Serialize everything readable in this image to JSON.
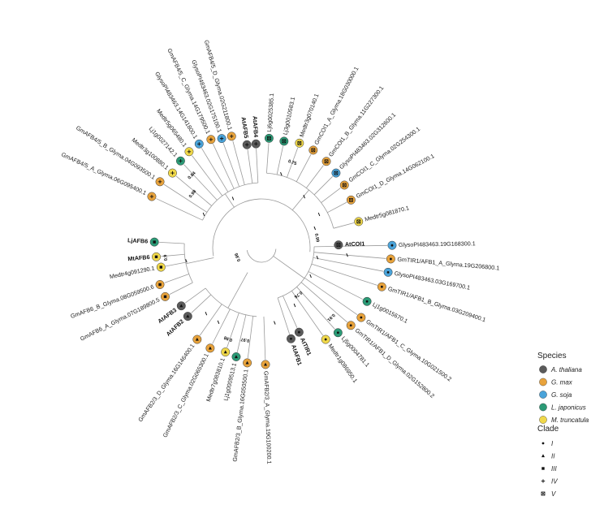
{
  "colors": {
    "A. thaliana": "#5a5a5a",
    "G. max": "#e8a33c",
    "G. soja": "#4aa3d9",
    "L. japonicus": "#2b9a76",
    "M. truncatula": "#f0d84a"
  },
  "tips": [
    {
      "label": "AtCOI1",
      "species": "A. thaliana",
      "clade": "V",
      "bold": true,
      "ang": 88,
      "r": 95
    },
    {
      "label": "Medtr5g081870.1",
      "species": "M. truncatula",
      "clade": "V",
      "ang": 75,
      "r": 124
    },
    {
      "label": "GmCOI1_D_Glyma.14G062100.1",
      "species": "G. max",
      "clade": "V",
      "ang": 62,
      "r": 125
    },
    {
      "label": "GmCOI1_C_Glyma.02G254300.1",
      "species": "G. max",
      "clade": "V",
      "ang": 53,
      "r": 128
    },
    {
      "label": "GlysoPI483463.02G312600.1",
      "species": "G. soja",
      "clade": "V",
      "ang": 45,
      "r": 130
    },
    {
      "label": "GmCOI1_B_Glyma.11G227300.1",
      "species": "G. max",
      "clade": "V",
      "ang": 37,
      "r": 133
    },
    {
      "label": "GmCOI1_A_Glyma.18G030000.1",
      "species": "G. max",
      "clade": "V",
      "ang": 28,
      "r": 136
    },
    {
      "label": "Medtr3g070140.1",
      "species": "M. truncatula",
      "clade": "V",
      "ang": 20,
      "r": 137
    },
    {
      "label": "Lj3g0010583.1",
      "species": "L. japonicus",
      "clade": "V",
      "ang": 12,
      "r": 134
    },
    {
      "label": "Lj6g0025385.1",
      "species": "L. japonicus",
      "clade": "V",
      "ang": 4,
      "r": 135
    },
    {
      "label": "AtAFB4",
      "species": "A. thaliana",
      "clade": "IV",
      "bold": true,
      "ang": -3,
      "r": 128
    },
    {
      "label": "AtAFB5",
      "species": "A. thaliana",
      "clade": "IV",
      "bold": true,
      "ang": -8,
      "r": 128
    },
    {
      "label": "GmAFB4/5_D_Glyma.02G211800.1",
      "species": "G. max",
      "clade": "IV",
      "ang": -15,
      "r": 142
    },
    {
      "label": "GlysoPI483463.02G175100.1",
      "species": "G. soja",
      "clade": "IV",
      "ang": -20,
      "r": 143
    },
    {
      "label": "GmAFB4/5_C_Glyma.14G179500.1",
      "species": "G. max",
      "clade": "IV",
      "ang": -25,
      "r": 147
    },
    {
      "label": "GlysoPI483463.14G141800.1",
      "species": "G. soja",
      "clade": "IV",
      "ang": -31,
      "r": 149
    },
    {
      "label": "Medtr5g065480.1",
      "species": "M. truncatula",
      "clade": "IV",
      "ang": -37,
      "r": 148
    },
    {
      "label": "Lj1g0027142.1",
      "species": "L. japonicus",
      "clade": "IV",
      "ang": -43,
      "r": 146
    },
    {
      "label": "Medtr3g100880.1",
      "species": "M. truncatula",
      "clade": "IV",
      "ang": -50,
      "r": 143
    },
    {
      "label": "GmAFB4/5_B_Glyma.04G093500.1",
      "species": "G. max",
      "clade": "IV",
      "ang": -57,
      "r": 149
    },
    {
      "label": "GmAFB4/5_A_Glyma.06G095400.1",
      "species": "G. max",
      "clade": "IV",
      "ang": -65,
      "r": 149
    },
    {
      "label": "LjAFB6",
      "species": "L. japonicus",
      "clade": "III",
      "bold": true,
      "ang": -87,
      "r": 132
    },
    {
      "label": "MtAFB6",
      "species": "M. truncatula",
      "clade": "III",
      "bold": true,
      "ang": -95,
      "r": 130
    },
    {
      "label": "Medtr4g091290.1",
      "species": "M. truncatula",
      "clade": "III",
      "ang": -101,
      "r": 126
    },
    {
      "label": "GmAFB6_B_Glyma.08G059500.6",
      "species": "G. max",
      "clade": "III",
      "ang": -110,
      "r": 133
    },
    {
      "label": "GmAFB6_A_Glyma.07G189800.5",
      "species": "G. max",
      "clade": "III",
      "ang": -117,
      "r": 133
    },
    {
      "label": "AtAFB3",
      "species": "A. thaliana",
      "clade": "II",
      "bold": true,
      "ang": -126,
      "r": 122
    },
    {
      "label": "AtAFB2",
      "species": "A. thaliana",
      "clade": "II",
      "bold": true,
      "ang": -133,
      "r": 124
    },
    {
      "label": "GmAFB2/3_D_Glyma.16G146400.1",
      "species": "G. max",
      "clade": "II",
      "ang": -145,
      "r": 138
    },
    {
      "label": "GmAFB2/3_C_Glyma.02G065300.1",
      "species": "G. max",
      "clade": "II",
      "ang": -153,
      "r": 139
    },
    {
      "label": "Medtr7g083810.1",
      "species": "M. truncatula",
      "clade": "II",
      "ang": -161,
      "r": 136
    },
    {
      "label": "Lj1g0009513.1",
      "species": "L. japonicus",
      "clade": "II",
      "ang": -167,
      "r": 138
    },
    {
      "label": "GmAFB2/3_B_Glyma.16G050500.1",
      "species": "G. max",
      "clade": "II",
      "ang": -173,
      "r": 143
    },
    {
      "label": "GmAFB2/3_A_Glyma.19G100200.1",
      "species": "G. max",
      "clade": "II",
      "ang": 178,
      "r": 144
    },
    {
      "label": "AtAFB1",
      "species": "A. thaliana",
      "clade": "I",
      "bold": true,
      "ang": 162,
      "r": 118
    },
    {
      "label": "AtTIR1",
      "species": "A. thaliana",
      "clade": "I",
      "bold": true,
      "ang": 156,
      "r": 114
    },
    {
      "label": "Medtr1g086950.1",
      "species": "M. truncatula",
      "clade": "I",
      "ang": 145,
      "r": 138
    },
    {
      "label": "Lj5g0004781.1",
      "species": "L. japonicus",
      "clade": "I",
      "ang": 138,
      "r": 141
    },
    {
      "label": "GmTIR1/AFB1_D_Glyma.02G152800.2",
      "species": "G. max",
      "clade": "I",
      "ang": 131,
      "r": 146
    },
    {
      "label": "GmTIR1/AFB1_C_Glyma.10G021500.2",
      "species": "G. max",
      "clade": "I",
      "ang": 125,
      "r": 150
    },
    {
      "label": "Lj1g0015670.1",
      "species": "L. japonicus",
      "clade": "I",
      "ang": 117,
      "r": 146
    },
    {
      "label": "GmTIR1/AFB1_B_Glyma.03G209400.1",
      "species": "G. max",
      "clade": "I",
      "ang": 108,
      "r": 156
    },
    {
      "label": "GlysoPI483463.03G169700.1",
      "species": "G. soja",
      "clade": "I",
      "ang": 101,
      "r": 159
    },
    {
      "label": "GmTIR1/AFB1_A_Glyma.19G206800.1",
      "species": "G. max",
      "clade": "I",
      "ang": 95,
      "r": 160
    },
    {
      "label": "GlysoPI483463.19G168300.1",
      "species": "G. soja",
      "clade": "I",
      "ang": 89,
      "r": 161
    }
  ],
  "bootstraps": [
    {
      "text": "0.99",
      "ang": 80,
      "r": 68
    },
    {
      "text": "0.75",
      "ang": 20,
      "r": 110
    },
    {
      "text": "0.84",
      "ang": -44,
      "r": 122
    },
    {
      "text": "0.98",
      "ang": -52,
      "r": 106
    },
    {
      "text": "0.9",
      "ang": -96,
      "r": 117
    },
    {
      "text": "0.96",
      "ang": -112,
      "r": 30
    },
    {
      "text": "0.98",
      "ang": -160,
      "r": 118
    },
    {
      "text": "0.97",
      "ang": -170,
      "r": 114
    },
    {
      "text": "0.76",
      "ang": 142,
      "r": 72
    },
    {
      "text": "0.91",
      "ang": 135,
      "r": 120
    }
  ],
  "legend": {
    "species_title": "Species",
    "species": [
      "A. thaliana",
      "G. max",
      "G. soja",
      "L. japonicus",
      "M. truncatula"
    ],
    "clade_title": "Clade",
    "clades": [
      "I",
      "II",
      "III",
      "IV",
      "V"
    ]
  }
}
